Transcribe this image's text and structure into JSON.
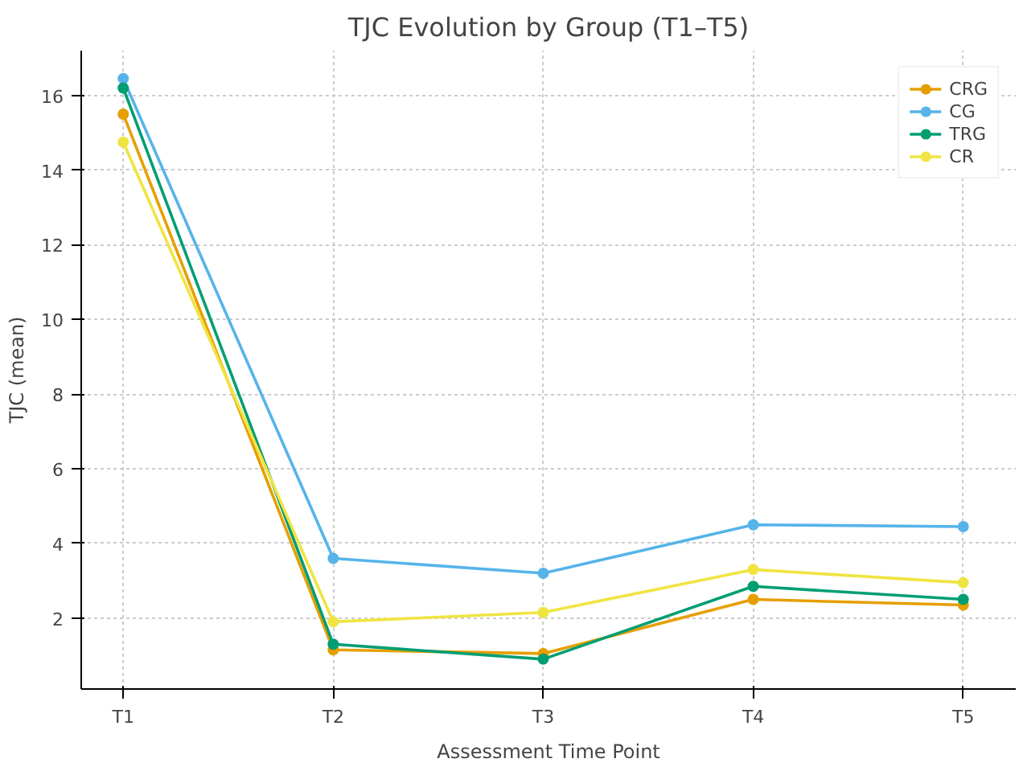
{
  "chart_data": {
    "type": "line",
    "title": "TJC Evolution by Group (T1–T5)",
    "xlabel": "Assessment Time Point",
    "ylabel": "TJC (mean)",
    "categories": [
      "T1",
      "T2",
      "T3",
      "T4",
      "T5"
    ],
    "series": [
      {
        "name": "CRG",
        "color": "#e69f00",
        "values": [
          15.5,
          1.15,
          1.05,
          2.5,
          2.35
        ]
      },
      {
        "name": "CG",
        "color": "#56b4e9",
        "values": [
          16.45,
          3.6,
          3.2,
          4.5,
          4.45
        ]
      },
      {
        "name": "TRG",
        "color": "#009e73",
        "values": [
          16.2,
          1.3,
          0.9,
          2.85,
          2.5
        ]
      },
      {
        "name": "CR",
        "color": "#f0e442",
        "values": [
          14.75,
          1.9,
          2.15,
          3.3,
          2.95
        ]
      }
    ],
    "ylim": [
      0.1,
      17.2
    ],
    "yticks": [
      2,
      4,
      6,
      8,
      10,
      12,
      14,
      16
    ],
    "grid": true,
    "legend": "top right",
    "marker": "circle",
    "line_style": "solid"
  }
}
